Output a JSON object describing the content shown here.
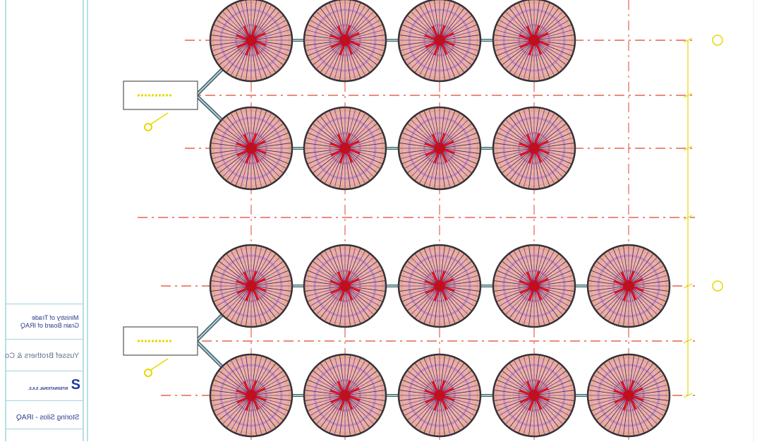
{
  "title_block": {
    "client": [
      "Ministry of Trade",
      "Grain Board of IRAQ"
    ],
    "contractor": "Yussef Brothers & Co",
    "company": "INTERNATIONAL S.A.S.",
    "project": "Storing Silos - IRAQ"
  },
  "silo_rows": [
    4,
    4,
    5,
    5
  ],
  "colors": {
    "grid": "#e0432f",
    "frame": "#9fd3e0",
    "dimension": "#e8d800",
    "silo_outline": "#333333"
  }
}
